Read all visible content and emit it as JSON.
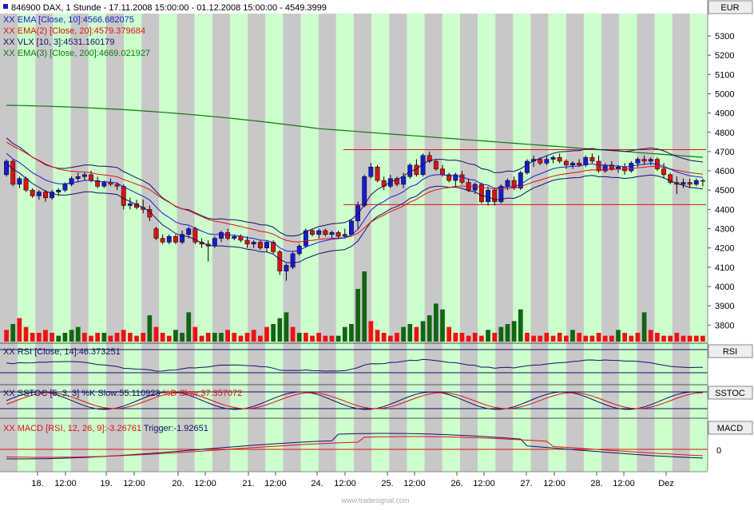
{
  "instrument": "846900",
  "header_line": "846900 DAX, 1 Stunde - 17.11.2008 15:00:00 - 01.12.2008 15:00:00 - 4549.3999",
  "currency": "EUR",
  "watermark": "www.tradesignal.com",
  "indicators_main": [
    {
      "text": "EMA [Close, 10]:4566.682075",
      "color": "#1a1ad0"
    },
    {
      "text": "EMA(2) [Close, 20]:4579.379684",
      "color": "#dd1111"
    },
    {
      "text": "VLX [10, 3]:4531.160179",
      "color": "#111166"
    },
    {
      "text": "EMA(3) [Close, 200]:4669.021927",
      "color": "#117711"
    }
  ],
  "panels": {
    "rsi": {
      "label": "RSI",
      "legend": "RSI [Close, 14]:46.373251"
    },
    "sstoc": {
      "label": "SSTOC",
      "legend_k": "SSTOC [5, 3, 3] %K Slow:55.110923",
      "legend_d": "%D Slow:37.357072"
    },
    "macd": {
      "label": "MACD",
      "legend_macd": "MACD [RSI, 12, 26, 9]:-3.26761",
      "legend_trigger": "Trigger:-1.92651",
      "zero_label": "0"
    }
  },
  "xaxis_labels": [
    "18.",
    "12:00",
    "19.",
    "12:00",
    "20.",
    "12:00",
    "21.",
    "12:00",
    "24.",
    "12:00",
    "25.",
    "12:00",
    "26.",
    "12:00",
    "27.",
    "12:00",
    "28.",
    "12:00",
    "Dez"
  ],
  "colors": {
    "up": "#1a1ad0",
    "down": "#dd1111",
    "vol_up": "#116611",
    "vol_down": "#ee1111",
    "stripe_a": "#ccffcc",
    "stripe_b": "#c8c8c8",
    "ema10": "#1a1ad0",
    "ema20": "#dd1111",
    "vlx": "#111166",
    "ema200": "#117711",
    "support": "#dd1111",
    "macd": "#111166",
    "trigger": "#dd1111"
  },
  "chart_data": {
    "type": "candlestick",
    "ylim": [
      3700,
      5450
    ],
    "yticks": [
      3800,
      3900,
      4000,
      4100,
      4200,
      4300,
      4400,
      4500,
      4600,
      4700,
      4800,
      4900,
      5000,
      5100,
      5200,
      5300
    ],
    "horizontal_lines": [
      4710,
      4425
    ],
    "candles": [
      [
        4580,
        4660,
        4570,
        4650
      ],
      [
        4650,
        4660,
        4520,
        4530
      ],
      [
        4530,
        4570,
        4510,
        4560
      ],
      [
        4560,
        4570,
        4490,
        4500
      ],
      [
        4500,
        4510,
        4460,
        4470
      ],
      [
        4470,
        4500,
        4450,
        4490
      ],
      [
        4490,
        4500,
        4440,
        4460
      ],
      [
        4460,
        4500,
        4450,
        4490
      ],
      [
        4490,
        4510,
        4470,
        4500
      ],
      [
        4500,
        4540,
        4490,
        4530
      ],
      [
        4530,
        4570,
        4520,
        4560
      ],
      [
        4560,
        4590,
        4540,
        4570
      ],
      [
        4570,
        4590,
        4550,
        4580
      ],
      [
        4580,
        4600,
        4540,
        4550
      ],
      [
        4550,
        4570,
        4510,
        4520
      ],
      [
        4520,
        4550,
        4510,
        4540
      ],
      [
        4540,
        4560,
        4520,
        4530
      ],
      [
        4530,
        4540,
        4500,
        4520
      ],
      [
        4520,
        4530,
        4400,
        4420
      ],
      [
        4420,
        4460,
        4400,
        4430
      ],
      [
        4430,
        4450,
        4400,
        4410
      ],
      [
        4410,
        4450,
        4380,
        4400
      ],
      [
        4400,
        4420,
        4340,
        4360
      ],
      [
        4300,
        4310,
        4240,
        4250
      ],
      [
        4250,
        4270,
        4220,
        4230
      ],
      [
        4230,
        4270,
        4220,
        4260
      ],
      [
        4260,
        4270,
        4220,
        4230
      ],
      [
        4230,
        4290,
        4220,
        4270
      ],
      [
        4270,
        4310,
        4250,
        4300
      ],
      [
        4300,
        4310,
        4220,
        4230
      ],
      [
        4230,
        4250,
        4200,
        4220
      ],
      [
        4220,
        4240,
        4130,
        4210
      ],
      [
        4210,
        4260,
        4200,
        4250
      ],
      [
        4250,
        4290,
        4230,
        4280
      ],
      [
        4280,
        4300,
        4240,
        4250
      ],
      [
        4250,
        4270,
        4240,
        4260
      ],
      [
        4260,
        4270,
        4230,
        4240
      ],
      [
        4240,
        4260,
        4200,
        4220
      ],
      [
        4220,
        4240,
        4200,
        4230
      ],
      [
        4230,
        4240,
        4190,
        4200
      ],
      [
        4200,
        4240,
        4180,
        4230
      ],
      [
        4230,
        4240,
        4170,
        4180
      ],
      [
        4180,
        4190,
        4060,
        4080
      ],
      [
        4080,
        4120,
        4030,
        4110
      ],
      [
        4100,
        4180,
        4090,
        4170
      ],
      [
        4170,
        4220,
        4160,
        4210
      ],
      [
        4210,
        4300,
        4200,
        4290
      ],
      [
        4290,
        4300,
        4260,
        4270
      ],
      [
        4270,
        4300,
        4250,
        4290
      ],
      [
        4290,
        4300,
        4260,
        4270
      ],
      [
        4270,
        4290,
        4250,
        4280
      ],
      [
        4280,
        4290,
        4250,
        4260
      ],
      [
        4260,
        4300,
        4250,
        4270
      ],
      [
        4270,
        4350,
        4260,
        4340
      ],
      [
        4340,
        4440,
        4300,
        4420
      ],
      [
        4420,
        4580,
        4410,
        4570
      ],
      [
        4570,
        4640,
        4560,
        4620
      ],
      [
        4620,
        4630,
        4540,
        4550
      ],
      [
        4550,
        4570,
        4500,
        4520
      ],
      [
        4520,
        4580,
        4510,
        4560
      ],
      [
        4560,
        4570,
        4520,
        4530
      ],
      [
        4530,
        4590,
        4510,
        4570
      ],
      [
        4570,
        4640,
        4560,
        4630
      ],
      [
        4630,
        4660,
        4570,
        4580
      ],
      [
        4580,
        4690,
        4570,
        4680
      ],
      [
        4680,
        4700,
        4640,
        4650
      ],
      [
        4650,
        4660,
        4600,
        4610
      ],
      [
        4610,
        4630,
        4570,
        4580
      ],
      [
        4580,
        4590,
        4540,
        4550
      ],
      [
        4550,
        4590,
        4520,
        4580
      ],
      [
        4580,
        4600,
        4530,
        4540
      ],
      [
        4540,
        4560,
        4490,
        4500
      ],
      [
        4500,
        4540,
        4480,
        4530
      ],
      [
        4530,
        4540,
        4430,
        4440
      ],
      [
        4440,
        4520,
        4420,
        4500
      ],
      [
        4500,
        4510,
        4420,
        4440
      ],
      [
        4440,
        4530,
        4430,
        4520
      ],
      [
        4520,
        4560,
        4500,
        4550
      ],
      [
        4550,
        4570,
        4500,
        4510
      ],
      [
        4510,
        4600,
        4500,
        4590
      ],
      [
        4590,
        4660,
        4580,
        4650
      ],
      [
        4650,
        4680,
        4620,
        4660
      ],
      [
        4660,
        4670,
        4630,
        4640
      ],
      [
        4640,
        4680,
        4630,
        4660
      ],
      [
        4660,
        4680,
        4640,
        4670
      ],
      [
        4670,
        4690,
        4640,
        4650
      ],
      [
        4650,
        4660,
        4610,
        4630
      ],
      [
        4630,
        4650,
        4610,
        4640
      ],
      [
        4640,
        4660,
        4620,
        4630
      ],
      [
        4630,
        4680,
        4620,
        4670
      ],
      [
        4670,
        4690,
        4640,
        4650
      ],
      [
        4650,
        4680,
        4590,
        4600
      ],
      [
        4600,
        4640,
        4590,
        4630
      ],
      [
        4630,
        4650,
        4600,
        4610
      ],
      [
        4610,
        4630,
        4590,
        4620
      ],
      [
        4620,
        4640,
        4580,
        4600
      ],
      [
        4600,
        4650,
        4590,
        4640
      ],
      [
        4640,
        4670,
        4620,
        4660
      ],
      [
        4660,
        4680,
        4630,
        4650
      ],
      [
        4650,
        4670,
        4630,
        4660
      ],
      [
        4660,
        4670,
        4600,
        4610
      ],
      [
        4610,
        4640,
        4560,
        4580
      ],
      [
        4580,
        4590,
        4530,
        4540
      ],
      [
        4540,
        4570,
        4480,
        4530
      ],
      [
        4530,
        4560,
        4510,
        4540
      ],
      [
        4540,
        4560,
        4510,
        4530
      ],
      [
        4530,
        4560,
        4520,
        4550
      ],
      [
        4550,
        4560,
        4520,
        4549
      ]
    ],
    "volume": [
      [
        4,
        "d"
      ],
      [
        6,
        "u"
      ],
      [
        8,
        "d"
      ],
      [
        5,
        "d"
      ],
      [
        3,
        "d"
      ],
      [
        3,
        "d"
      ],
      [
        4,
        "d"
      ],
      [
        3,
        "d"
      ],
      [
        2,
        "u"
      ],
      [
        3,
        "u"
      ],
      [
        4,
        "u"
      ],
      [
        5,
        "u"
      ],
      [
        3,
        "d"
      ],
      [
        2,
        "d"
      ],
      [
        3,
        "d"
      ],
      [
        3,
        "u"
      ],
      [
        2,
        "d"
      ],
      [
        3,
        "d"
      ],
      [
        4,
        "d"
      ],
      [
        3,
        "d"
      ],
      [
        2,
        "d"
      ],
      [
        3,
        "d"
      ],
      [
        9,
        "u"
      ],
      [
        5,
        "d"
      ],
      [
        3,
        "d"
      ],
      [
        2,
        "d"
      ],
      [
        4,
        "u"
      ],
      [
        3,
        "u"
      ],
      [
        10,
        "u"
      ],
      [
        5,
        "d"
      ],
      [
        2,
        "d"
      ],
      [
        3,
        "d"
      ],
      [
        3,
        "u"
      ],
      [
        3,
        "u"
      ],
      [
        4,
        "d"
      ],
      [
        3,
        "d"
      ],
      [
        2,
        "d"
      ],
      [
        3,
        "d"
      ],
      [
        4,
        "d"
      ],
      [
        2,
        "d"
      ],
      [
        5,
        "d"
      ],
      [
        6,
        "u"
      ],
      [
        8,
        "u"
      ],
      [
        10,
        "u"
      ],
      [
        5,
        "d"
      ],
      [
        3,
        "u"
      ],
      [
        3,
        "d"
      ],
      [
        2,
        "d"
      ],
      [
        3,
        "d"
      ],
      [
        2,
        "d"
      ],
      [
        2,
        "d"
      ],
      [
        2,
        "u"
      ],
      [
        5,
        "u"
      ],
      [
        6,
        "u"
      ],
      [
        18,
        "u"
      ],
      [
        24,
        "u"
      ],
      [
        7,
        "d"
      ],
      [
        4,
        "d"
      ],
      [
        3,
        "d"
      ],
      [
        2,
        "d"
      ],
      [
        3,
        "d"
      ],
      [
        5,
        "u"
      ],
      [
        6,
        "u"
      ],
      [
        5,
        "d"
      ],
      [
        7,
        "u"
      ],
      [
        9,
        "u"
      ],
      [
        13,
        "u"
      ],
      [
        11,
        "u"
      ],
      [
        5,
        "d"
      ],
      [
        3,
        "d"
      ],
      [
        3,
        "d"
      ],
      [
        2,
        "d"
      ],
      [
        3,
        "d"
      ],
      [
        2,
        "d"
      ],
      [
        4,
        "u"
      ],
      [
        3,
        "d"
      ],
      [
        5,
        "u"
      ],
      [
        6,
        "u"
      ],
      [
        7,
        "u"
      ],
      [
        11,
        "u"
      ],
      [
        3,
        "d"
      ],
      [
        2,
        "d"
      ],
      [
        2,
        "d"
      ],
      [
        3,
        "d"
      ],
      [
        2,
        "d"
      ],
      [
        3,
        "d"
      ],
      [
        2,
        "d"
      ],
      [
        4,
        "u"
      ],
      [
        3,
        "d"
      ],
      [
        2,
        "d"
      ],
      [
        2,
        "d"
      ],
      [
        3,
        "d"
      ],
      [
        2,
        "d"
      ],
      [
        2,
        "d"
      ],
      [
        4,
        "u"
      ],
      [
        3,
        "d"
      ],
      [
        2,
        "d"
      ],
      [
        3,
        "d"
      ],
      [
        10,
        "u"
      ],
      [
        4,
        "d"
      ],
      [
        3,
        "d"
      ],
      [
        2,
        "d"
      ],
      [
        2,
        "d"
      ],
      [
        3,
        "d"
      ],
      [
        2,
        "d"
      ],
      [
        2,
        "d"
      ],
      [
        2,
        "d"
      ],
      [
        2,
        "d"
      ]
    ]
  }
}
